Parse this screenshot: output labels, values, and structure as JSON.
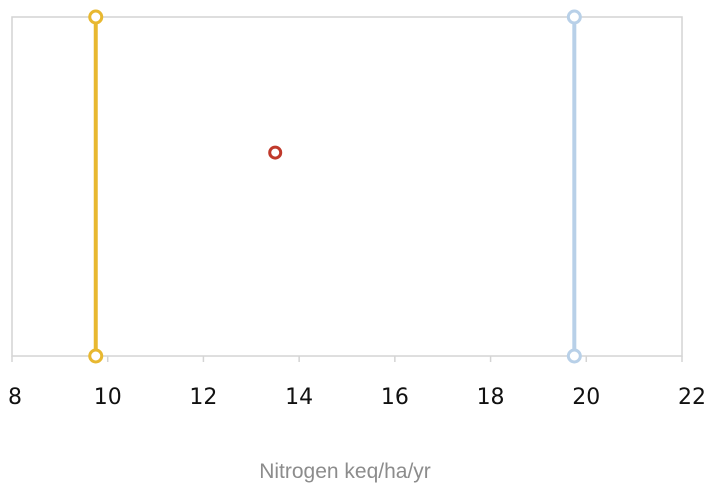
{
  "chart_data": {
    "type": "scatter",
    "title": "",
    "xlabel": "Nitrogen keq/ha/yr",
    "ylabel": "",
    "xlim": [
      8,
      22
    ],
    "ylim": [
      0,
      1
    ],
    "x_ticks": [
      "8",
      "10",
      "12",
      "14",
      "16",
      "18",
      "20",
      "22"
    ],
    "grid": false,
    "legend": "none",
    "series": [
      {
        "type": "line",
        "color": "#e8b830",
        "points": [
          {
            "x": 9.75,
            "y": 0
          },
          {
            "x": 9.75,
            "y": 1
          }
        ]
      },
      {
        "type": "line",
        "color": "#b8d0e8",
        "points": [
          {
            "x": 19.75,
            "y": 0
          },
          {
            "x": 19.75,
            "y": 1
          }
        ]
      },
      {
        "type": "scatter",
        "color": "#c0392b",
        "points": [
          {
            "x": 13.5,
            "y": 0.6
          }
        ]
      }
    ]
  }
}
